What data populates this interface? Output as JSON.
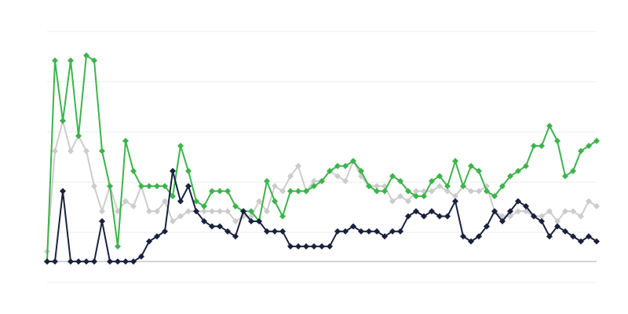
{
  "chart_data": {
    "type": "line",
    "title": "",
    "xlabel": "",
    "ylabel": "",
    "x": [
      0,
      1,
      2,
      3,
      4,
      5,
      6,
      7,
      8,
      9,
      10,
      11,
      12,
      13,
      14,
      15,
      16,
      17,
      18,
      19,
      20,
      21,
      22,
      23,
      24,
      25,
      26,
      27,
      28,
      29,
      30,
      31,
      32,
      33,
      34,
      35,
      36,
      37,
      38,
      39,
      40,
      41,
      42,
      43,
      44,
      45,
      46,
      47,
      48,
      49,
      50,
      51,
      52,
      53,
      54,
      55,
      56,
      57,
      58,
      59,
      60,
      61,
      62,
      63,
      64,
      65,
      66,
      67,
      68,
      69,
      70
    ],
    "xlim": [
      0,
      70
    ],
    "ylim": [
      -0.42,
      4.58
    ],
    "grid": true,
    "legend": "none",
    "markers": "diamond",
    "series": [
      {
        "color": "#cccccc",
        "values": [
          0.2,
          2.2,
          2.8,
          2.2,
          2.5,
          2.2,
          1.5,
          1.0,
          1.5,
          1.0,
          1.2,
          1.1,
          1.5,
          1.0,
          1.0,
          1.2,
          0.8,
          0.9,
          1.0,
          1.0,
          1.0,
          1.0,
          1.0,
          1.0,
          0.8,
          0.9,
          0.9,
          1.2,
          1.0,
          1.5,
          1.4,
          1.7,
          1.9,
          1.4,
          1.6,
          1.6,
          1.8,
          1.7,
          1.6,
          2.0,
          1.7,
          1.5,
          1.5,
          1.5,
          1.2,
          1.3,
          1.2,
          1.4,
          1.4,
          1.4,
          1.5,
          1.4,
          1.3,
          1.5,
          1.4,
          1.4,
          1.5,
          1.0,
          0.9,
          0.9,
          1.0,
          1.0,
          0.9,
          0.9,
          1.0,
          0.8,
          1.0,
          1.0,
          0.9,
          1.2,
          1.1
        ]
      },
      {
        "color": "#3cb44b",
        "values": [
          0,
          4.0,
          2.8,
          4.0,
          2.5,
          4.1,
          4.0,
          2.2,
          1.5,
          0.3,
          2.4,
          1.8,
          1.5,
          1.5,
          1.5,
          1.5,
          1.3,
          2.3,
          1.8,
          1.2,
          1.1,
          1.4,
          1.4,
          1.4,
          1.1,
          1.0,
          1.0,
          0.8,
          1.6,
          1.2,
          0.9,
          1.4,
          1.4,
          1.4,
          1.5,
          1.6,
          1.8,
          1.9,
          1.9,
          2.0,
          1.8,
          1.5,
          1.4,
          1.4,
          1.7,
          1.6,
          1.4,
          1.3,
          1.3,
          1.6,
          1.7,
          1.5,
          2.0,
          1.5,
          1.9,
          1.8,
          1.4,
          1.3,
          1.5,
          1.7,
          1.8,
          1.9,
          2.3,
          2.3,
          2.7,
          2.4,
          1.7,
          1.8,
          2.2,
          2.3,
          2.4
        ]
      },
      {
        "color": "#18213d",
        "values": [
          0,
          0,
          1.4,
          0,
          0,
          0,
          0,
          0.8,
          0,
          0,
          0,
          0,
          0.1,
          0.4,
          0.5,
          0.6,
          1.8,
          1.2,
          1.5,
          1.0,
          0.8,
          0.7,
          0.7,
          0.6,
          0.5,
          1.0,
          0.8,
          0.8,
          0.6,
          0.6,
          0.6,
          0.3,
          0.3,
          0.3,
          0.3,
          0.3,
          0.3,
          0.6,
          0.6,
          0.7,
          0.6,
          0.6,
          0.6,
          0.5,
          0.6,
          0.6,
          0.9,
          1.0,
          0.9,
          1.0,
          0.9,
          0.9,
          1.2,
          0.5,
          0.4,
          0.5,
          0.7,
          1.0,
          0.8,
          1.0,
          1.2,
          1.1,
          0.9,
          0.8,
          0.5,
          0.7,
          0.6,
          0.5,
          0.4,
          0.5,
          0.4
        ]
      }
    ]
  }
}
